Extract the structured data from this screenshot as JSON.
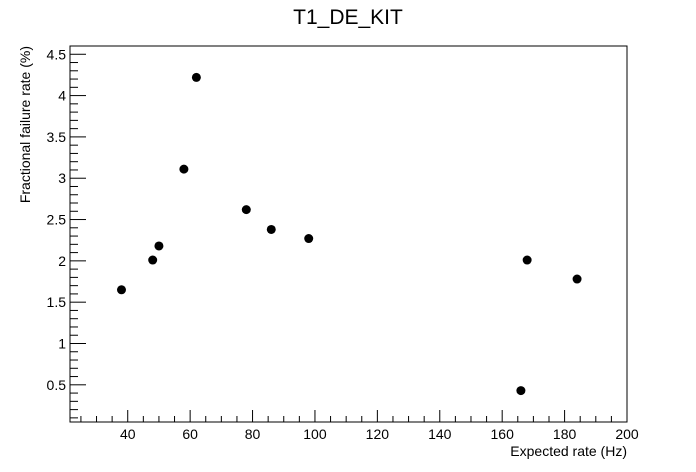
{
  "chart_data": {
    "type": "scatter",
    "title": "T1_DE_KIT",
    "xlabel": "Expected rate (Hz)",
    "ylabel": "Fractional failure rate (%)",
    "xlim": [
      21.5,
      200
    ],
    "ylim": [
      0.05,
      4.6
    ],
    "x_ticks": [
      40,
      60,
      80,
      100,
      120,
      140,
      160,
      180,
      200
    ],
    "y_ticks": [
      0.5,
      1,
      1.5,
      2,
      2.5,
      3,
      3.5,
      4,
      4.5
    ],
    "x_tick_labels": [
      "40",
      "60",
      "80",
      "100",
      "120",
      "140",
      "160",
      "180",
      "200"
    ],
    "y_tick_labels": [
      "0.5",
      "1",
      "1.5",
      "2",
      "2.5",
      "3",
      "3.5",
      "4",
      "4.5"
    ],
    "grid": false,
    "marker_color": "#000000",
    "points": [
      {
        "x": 38,
        "y": 1.65
      },
      {
        "x": 48,
        "y": 2.01
      },
      {
        "x": 50,
        "y": 2.18
      },
      {
        "x": 58,
        "y": 3.11
      },
      {
        "x": 62,
        "y": 4.22
      },
      {
        "x": 78,
        "y": 2.62
      },
      {
        "x": 86,
        "y": 2.38
      },
      {
        "x": 98,
        "y": 2.27
      },
      {
        "x": 166,
        "y": 0.43
      },
      {
        "x": 168,
        "y": 2.01
      },
      {
        "x": 184,
        "y": 1.78
      }
    ]
  }
}
